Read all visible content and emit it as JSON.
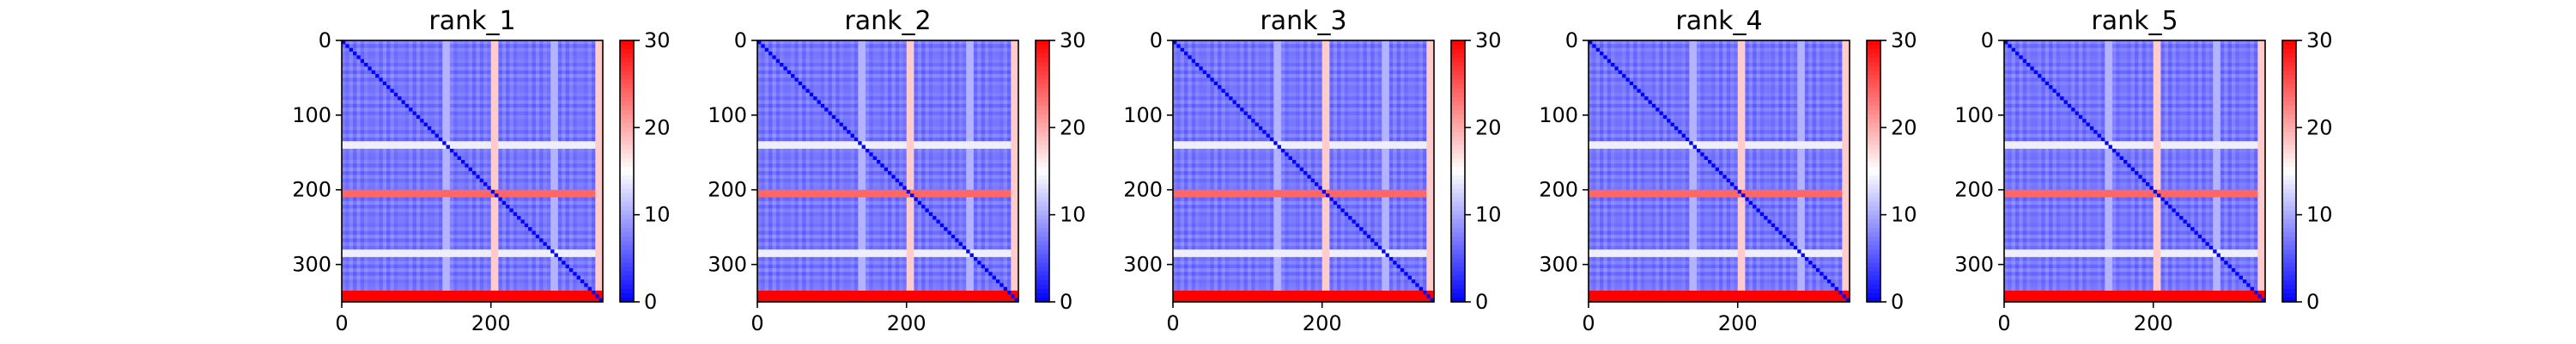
{
  "chart_data": [
    {
      "type": "heatmap",
      "title": "rank_1",
      "matrix_size": 350,
      "xticks": [
        0,
        200
      ],
      "yticks": [
        0,
        100,
        200,
        300
      ],
      "colorbar": {
        "ticks": [
          0,
          10,
          20,
          30
        ],
        "vmin": 0,
        "vmax": 30,
        "colormap": "bwr"
      },
      "approx_values": {
        "background": 7,
        "diagonal": 0,
        "stripe_rows": [
          140,
          205,
          285
        ],
        "stripe_row_values": [
          14,
          24,
          14
        ],
        "high_rows_start": 335,
        "high_value": 30,
        "right_columns_start": 338,
        "right_value": 18
      }
    },
    {
      "type": "heatmap",
      "title": "rank_2",
      "matrix_size": 350,
      "xticks": [
        0,
        200
      ],
      "yticks": [
        0,
        100,
        200,
        300
      ],
      "colorbar": {
        "ticks": [
          0,
          10,
          20,
          30
        ],
        "vmin": 0,
        "vmax": 30,
        "colormap": "bwr"
      },
      "approx_values": {
        "background": 7,
        "diagonal": 0,
        "stripe_rows": [
          140,
          205,
          285
        ],
        "stripe_row_values": [
          14,
          24,
          14
        ],
        "high_rows_start": 335,
        "high_value": 30,
        "right_columns_start": 338,
        "right_value": 18
      }
    },
    {
      "type": "heatmap",
      "title": "rank_3",
      "matrix_size": 350,
      "xticks": [
        0,
        200
      ],
      "yticks": [
        0,
        100,
        200,
        300
      ],
      "colorbar": {
        "ticks": [
          0,
          10,
          20,
          30
        ],
        "vmin": 0,
        "vmax": 30,
        "colormap": "bwr"
      },
      "approx_values": {
        "background": 7,
        "diagonal": 0,
        "stripe_rows": [
          140,
          205,
          285
        ],
        "stripe_row_values": [
          14,
          24,
          14
        ],
        "high_rows_start": 335,
        "high_value": 30,
        "right_columns_start": 338,
        "right_value": 18
      }
    },
    {
      "type": "heatmap",
      "title": "rank_4",
      "matrix_size": 350,
      "xticks": [
        0,
        200
      ],
      "yticks": [
        0,
        100,
        200,
        300
      ],
      "colorbar": {
        "ticks": [
          0,
          10,
          20,
          30
        ],
        "vmin": 0,
        "vmax": 30,
        "colormap": "bwr"
      },
      "approx_values": {
        "background": 7,
        "diagonal": 0,
        "stripe_rows": [
          140,
          205,
          285
        ],
        "stripe_row_values": [
          14,
          24,
          14
        ],
        "high_rows_start": 335,
        "high_value": 30,
        "right_columns_start": 338,
        "right_value": 18
      }
    },
    {
      "type": "heatmap",
      "title": "rank_5",
      "matrix_size": 350,
      "xticks": [
        0,
        200
      ],
      "yticks": [
        0,
        100,
        200,
        300
      ],
      "colorbar": {
        "ticks": [
          0,
          10,
          20,
          30
        ],
        "vmin": 0,
        "vmax": 30,
        "colormap": "bwr"
      },
      "approx_values": {
        "background": 7,
        "diagonal": 0,
        "stripe_rows": [
          140,
          205,
          285
        ],
        "stripe_row_values": [
          14,
          24,
          14
        ],
        "high_rows_start": 335,
        "high_value": 30,
        "right_columns_start": 338,
        "right_value": 18
      }
    }
  ],
  "colors": {
    "low": "#0000ff",
    "mid": "#ffffff",
    "high": "#ff0000",
    "axis": "#000000"
  }
}
